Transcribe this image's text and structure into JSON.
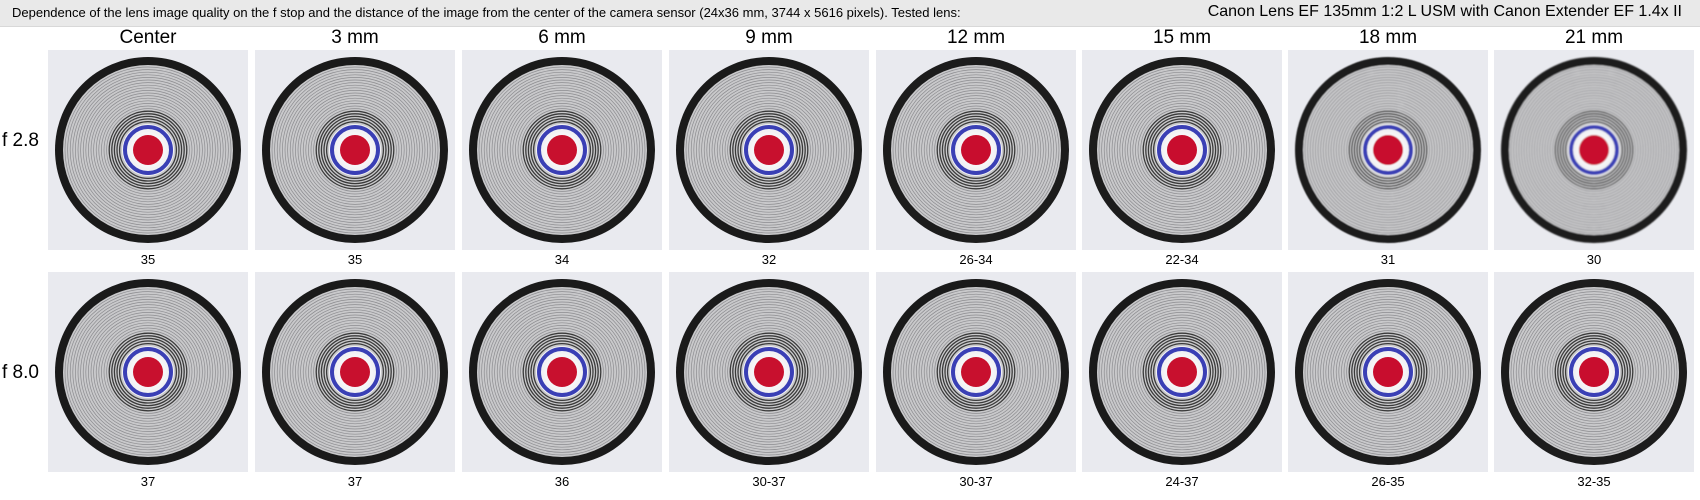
{
  "header": {
    "description": "Dependence of the lens image quality on the f stop and the distance of the image from the center of the camera sensor (24x36 mm, 3744 x 5616 pixels).  Tested lens:",
    "lens": "Canon Lens EF 135mm 1:2 L USM with Canon Extender EF 1.4x II"
  },
  "columns": [
    "Center",
    "3 mm",
    "6 mm",
    "9 mm",
    "12 mm",
    "15 mm",
    "18 mm",
    "21 mm"
  ],
  "rows": [
    {
      "label": "f 2.8",
      "scores": [
        "35",
        "35",
        "34",
        "32",
        "26-34",
        "22-34",
        "31",
        "30"
      ]
    },
    {
      "label": "f 8.0",
      "scores": [
        "37",
        "37",
        "36",
        "30-37",
        "30-37",
        "24-37",
        "26-35",
        "32-35"
      ]
    }
  ],
  "colors": {
    "target_center": "#c8102e",
    "target_ring_blue": "#3a3fb5",
    "target_frame": "#1a1a1a",
    "target_bg": "#c9c9cb",
    "tile_bg": "#e9eaef"
  }
}
